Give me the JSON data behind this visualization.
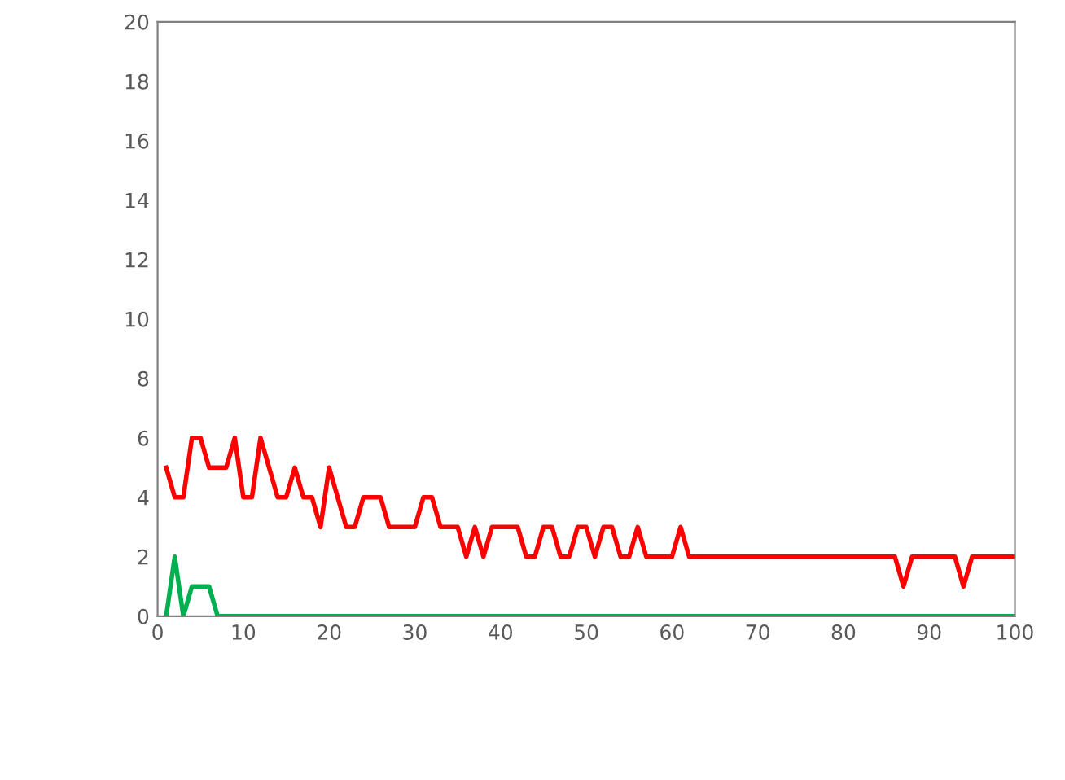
{
  "chart_data": {
    "type": "line",
    "x": [
      1,
      2,
      3,
      4,
      5,
      6,
      7,
      8,
      9,
      10,
      11,
      12,
      13,
      14,
      15,
      16,
      17,
      18,
      19,
      20,
      21,
      22,
      23,
      24,
      25,
      26,
      27,
      28,
      29,
      30,
      31,
      32,
      33,
      34,
      35,
      36,
      37,
      38,
      39,
      40,
      41,
      42,
      43,
      44,
      45,
      46,
      47,
      48,
      49,
      50,
      51,
      52,
      53,
      54,
      55,
      56,
      57,
      58,
      59,
      60,
      61,
      62,
      63,
      64,
      65,
      66,
      67,
      68,
      69,
      70,
      71,
      72,
      73,
      74,
      75,
      76,
      77,
      78,
      79,
      80,
      81,
      82,
      83,
      84,
      85,
      86,
      87,
      88,
      89,
      90,
      91,
      92,
      93,
      94,
      95,
      96,
      97,
      98,
      99,
      100
    ],
    "series": [
      {
        "color": "#ff0000",
        "values": [
          5,
          4,
          4,
          6,
          6,
          5,
          5,
          5,
          6,
          4,
          4,
          6,
          5,
          4,
          4,
          5,
          4,
          4,
          3,
          5,
          4,
          3,
          3,
          4,
          4,
          4,
          3,
          3,
          3,
          3,
          4,
          4,
          3,
          3,
          3,
          2,
          3,
          2,
          3,
          3,
          3,
          3,
          2,
          2,
          3,
          3,
          2,
          2,
          3,
          3,
          2,
          3,
          3,
          2,
          2,
          3,
          2,
          2,
          2,
          2,
          3,
          2,
          2,
          2,
          2,
          2,
          2,
          2,
          2,
          2,
          2,
          2,
          2,
          2,
          2,
          2,
          2,
          2,
          2,
          2,
          2,
          2,
          2,
          2,
          2,
          2,
          1,
          2,
          2,
          2,
          2,
          2,
          2,
          1,
          2,
          2,
          2,
          2,
          2,
          2
        ]
      },
      {
        "color": "#00b050",
        "values": [
          0,
          2,
          0,
          1,
          1,
          1,
          0,
          0,
          0,
          0,
          0,
          0,
          0,
          0,
          0,
          0,
          0,
          0,
          0,
          0,
          0,
          0,
          0,
          0,
          0,
          0,
          0,
          0,
          0,
          0,
          0,
          0,
          0,
          0,
          0,
          0,
          0,
          0,
          0,
          0,
          0,
          0,
          0,
          0,
          0,
          0,
          0,
          0,
          0,
          0,
          0,
          0,
          0,
          0,
          0,
          0,
          0,
          0,
          0,
          0,
          0,
          0,
          0,
          0,
          0,
          0,
          0,
          0,
          0,
          0,
          0,
          0,
          0,
          0,
          0,
          0,
          0,
          0,
          0,
          0,
          0,
          0,
          0,
          0,
          0,
          0,
          0,
          0,
          0,
          0,
          0,
          0,
          0,
          0,
          0,
          0,
          0,
          0,
          0,
          0
        ]
      }
    ],
    "xlim": [
      0,
      100
    ],
    "xticks": [
      0,
      10,
      20,
      30,
      40,
      50,
      60,
      70,
      80,
      90,
      100
    ],
    "ylim": [
      0,
      20
    ],
    "yticks": [
      0,
      2,
      4,
      6,
      8,
      10,
      12,
      14,
      16,
      18,
      20
    ],
    "line_style": "solid"
  }
}
